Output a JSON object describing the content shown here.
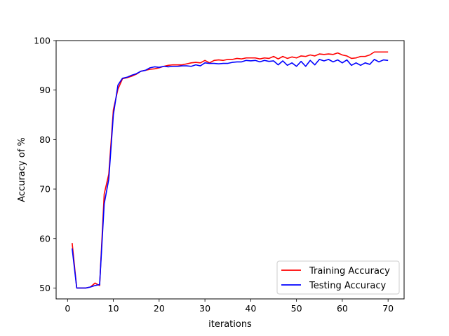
{
  "chart_data": {
    "type": "line",
    "title": "",
    "xlabel": "iterations",
    "ylabel": "Accuracy of %",
    "xlim": [
      -2.5,
      73.5
    ],
    "ylim": [
      47.8,
      100
    ],
    "xticks": [
      0,
      10,
      20,
      30,
      40,
      50,
      60,
      70
    ],
    "yticks": [
      50,
      60,
      70,
      80,
      90,
      100
    ],
    "grid": false,
    "legend_position": "lower-right",
    "x": [
      1,
      2,
      3,
      4,
      5,
      6,
      7,
      8,
      9,
      10,
      11,
      12,
      13,
      14,
      15,
      16,
      17,
      18,
      19,
      20,
      21,
      22,
      23,
      24,
      25,
      26,
      27,
      28,
      29,
      30,
      31,
      32,
      33,
      34,
      35,
      36,
      37,
      38,
      39,
      40,
      41,
      42,
      43,
      44,
      45,
      46,
      47,
      48,
      49,
      50,
      51,
      52,
      53,
      54,
      55,
      56,
      57,
      58,
      59,
      60,
      61,
      62,
      63,
      64,
      65,
      66,
      67,
      68,
      69,
      70
    ],
    "series": [
      {
        "name": "Training Accuracy",
        "color": "#ff0000",
        "values": [
          59.1,
          50.0,
          50.0,
          50.0,
          50.2,
          51.0,
          50.5,
          69.0,
          73.0,
          86.0,
          90.2,
          92.3,
          92.5,
          92.8,
          93.2,
          93.8,
          94.0,
          94.2,
          94.3,
          94.5,
          94.8,
          95.0,
          95.1,
          95.1,
          95.1,
          95.3,
          95.5,
          95.6,
          95.5,
          96.0,
          95.5,
          96.0,
          96.1,
          96.0,
          96.2,
          96.2,
          96.4,
          96.3,
          96.5,
          96.5,
          96.5,
          96.3,
          96.5,
          96.4,
          96.8,
          96.3,
          96.8,
          96.4,
          96.7,
          96.5,
          96.9,
          96.8,
          97.1,
          96.9,
          97.3,
          97.2,
          97.3,
          97.2,
          97.5,
          97.1,
          96.9,
          96.4,
          96.5,
          96.8,
          96.8,
          97.1,
          97.7,
          97.7,
          97.7,
          97.7
        ]
      },
      {
        "name": "Testing Accuracy",
        "color": "#0000ff",
        "values": [
          58.0,
          50.0,
          50.0,
          50.0,
          50.2,
          50.5,
          50.7,
          67.0,
          72.0,
          85.0,
          91.0,
          92.4,
          92.6,
          93.0,
          93.3,
          93.8,
          94.0,
          94.5,
          94.7,
          94.6,
          94.8,
          94.7,
          94.8,
          94.8,
          94.9,
          94.9,
          94.8,
          95.1,
          94.9,
          95.5,
          95.4,
          95.4,
          95.3,
          95.4,
          95.4,
          95.6,
          95.7,
          95.7,
          96.0,
          95.9,
          96.0,
          95.7,
          96.0,
          95.8,
          95.9,
          95.1,
          95.9,
          95.0,
          95.5,
          94.8,
          95.8,
          94.8,
          96.0,
          95.1,
          96.2,
          95.9,
          96.2,
          95.7,
          96.1,
          95.5,
          96.1,
          95.0,
          95.5,
          95.0,
          95.5,
          95.2,
          96.2,
          95.7,
          96.1,
          96.0
        ]
      }
    ]
  }
}
